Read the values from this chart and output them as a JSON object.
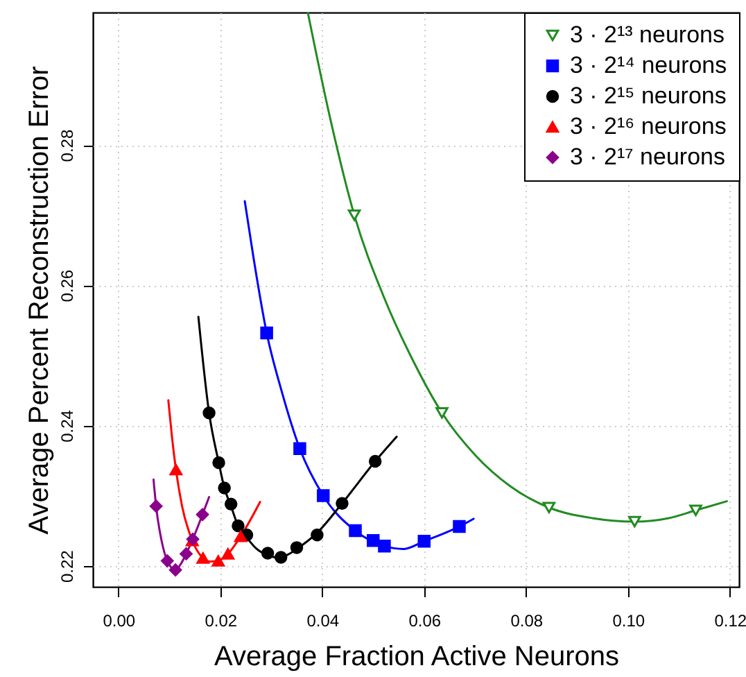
{
  "chart_data": {
    "type": "scatter",
    "xlabel": "Average Fraction Active Neurons",
    "ylabel": "Average Percent Reconstruction Error",
    "xlim": [
      -0.005,
      0.1218
    ],
    "ylim": [
      0.217,
      0.2989
    ],
    "xticks": [
      {
        "value": 0,
        "label": "0.00"
      },
      0.02,
      0.04,
      0.06,
      0.08,
      {
        "value": 0.1,
        "label": "0.10"
      },
      0.12
    ],
    "yticks": [
      0.22,
      0.24,
      0.26,
      0.28
    ],
    "grid": true,
    "legend": "top right",
    "line_style": "solid",
    "series": [
      {
        "name": "3 · 2¹³ neurons",
        "color": "#228b22",
        "marker": "triangle-down",
        "x": [
          0.0463,
          0.0635,
          0.0845,
          0.1013,
          0.1133
        ],
        "values": [
          0.27,
          0.2418,
          0.2283,
          0.2263,
          0.2279
        ]
      },
      {
        "type": "line",
        "color": "#228b22",
        "x": [
          0.0372,
          0.0415,
          0.0463,
          0.052,
          0.058,
          0.0635,
          0.07,
          0.077,
          0.0845,
          0.093,
          0.1013,
          0.108,
          0.1133,
          0.1194
        ],
        "values": [
          0.2988,
          0.284,
          0.27,
          0.2585,
          0.249,
          0.2418,
          0.2358,
          0.2313,
          0.2283,
          0.2268,
          0.2263,
          0.2268,
          0.2279,
          0.2292
        ]
      },
      {
        "name": "3 · 2¹⁴ neurons",
        "color": "#0000ff",
        "marker": "square",
        "x": [
          0.0291,
          0.0356,
          0.0402,
          0.0465,
          0.05,
          0.0522,
          0.06,
          0.0669
        ],
        "values": [
          0.2532,
          0.2367,
          0.23,
          0.225,
          0.2236,
          0.2228,
          0.2235,
          0.2256
        ]
      },
      {
        "type": "line",
        "color": "#0000ff",
        "x": [
          0.0248,
          0.0265,
          0.0291,
          0.032,
          0.0356,
          0.0402,
          0.0465,
          0.0522,
          0.056,
          0.06,
          0.0669,
          0.0697
        ],
        "values": [
          0.272,
          0.264,
          0.2532,
          0.245,
          0.2367,
          0.23,
          0.225,
          0.2228,
          0.2224,
          0.2235,
          0.2256,
          0.2267
        ]
      },
      {
        "name": "3 · 2¹⁵ neurons",
        "color": "#000000",
        "marker": "circle",
        "x": [
          0.0178,
          0.0197,
          0.0208,
          0.0221,
          0.0235,
          0.0252,
          0.0293,
          0.0319,
          0.035,
          0.039,
          0.0439,
          0.0504
        ],
        "values": [
          0.2418,
          0.2347,
          0.2311,
          0.2288,
          0.2257,
          0.2244,
          0.2218,
          0.2212,
          0.2226,
          0.2244,
          0.2289,
          0.2349
        ]
      },
      {
        "type": "line",
        "color": "#000000",
        "x": [
          0.0157,
          0.0178,
          0.0197,
          0.0208,
          0.0221,
          0.0235,
          0.0252,
          0.027,
          0.0293,
          0.031,
          0.033,
          0.035,
          0.039,
          0.0439,
          0.0504,
          0.0546
        ],
        "values": [
          0.2555,
          0.2418,
          0.2347,
          0.2311,
          0.2285,
          0.2257,
          0.224,
          0.2225,
          0.2215,
          0.2212,
          0.2215,
          0.2224,
          0.2247,
          0.2289,
          0.2349,
          0.2384
        ]
      },
      {
        "name": "3 · 2¹⁶ neurons",
        "color": "#ff0000",
        "marker": "triangle",
        "x": [
          0.0113,
          0.0145,
          0.0166,
          0.0196,
          0.0215,
          0.024
        ],
        "values": [
          0.2337,
          0.2236,
          0.2211,
          0.2207,
          0.2217,
          0.2242
        ]
      },
      {
        "type": "line",
        "color": "#ff0000",
        "x": [
          0.0098,
          0.0105,
          0.0113,
          0.0125,
          0.0145,
          0.0166,
          0.018,
          0.0196,
          0.0215,
          0.024,
          0.0278
        ],
        "values": [
          0.2436,
          0.2385,
          0.2337,
          0.2285,
          0.2236,
          0.2211,
          0.2206,
          0.2207,
          0.2217,
          0.2242,
          0.2291
        ]
      },
      {
        "name": "3 · 2¹⁷ neurons",
        "color": "#8b008b",
        "marker": "diamond",
        "x": [
          0.0074,
          0.0096,
          0.0112,
          0.0133,
          0.0146,
          0.0165
        ],
        "values": [
          0.2285,
          0.2207,
          0.2194,
          0.2217,
          0.2238,
          0.2273
        ]
      },
      {
        "type": "line",
        "color": "#8b008b",
        "x": [
          0.0069,
          0.0074,
          0.0085,
          0.0096,
          0.0112,
          0.0122,
          0.0133,
          0.0146,
          0.0165,
          0.0178
        ],
        "values": [
          0.2323,
          0.2285,
          0.2235,
          0.2207,
          0.2194,
          0.2202,
          0.2217,
          0.2238,
          0.2273,
          0.2298
        ]
      }
    ]
  }
}
